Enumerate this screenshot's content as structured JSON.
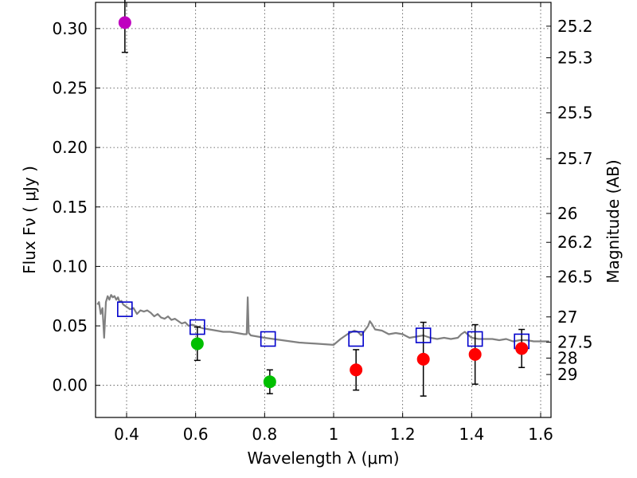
{
  "chart_data": {
    "type": "scatter",
    "title": "",
    "xlabel": "Wavelength  λ (μm)",
    "ylabel": "Flux  Fν  ( μJy )",
    "ylabel_right": "Magnitude (AB)",
    "xlim": [
      0.31,
      1.63
    ],
    "ylim": [
      -0.027,
      0.322
    ],
    "grid": true,
    "x_ticks": [
      {
        "value": 0.4,
        "label": "0.4"
      },
      {
        "value": 0.6,
        "label": "0.6"
      },
      {
        "value": 0.8,
        "label": "0.8"
      },
      {
        "value": 1.0,
        "label": "1"
      },
      {
        "value": 1.2,
        "label": "1.2"
      },
      {
        "value": 1.4,
        "label": "1.4"
      },
      {
        "value": 1.6,
        "label": "1.6"
      }
    ],
    "y_ticks": [
      {
        "value": 0.0,
        "label": "0.00"
      },
      {
        "value": 0.05,
        "label": "0.05"
      },
      {
        "value": 0.1,
        "label": "0.10"
      },
      {
        "value": 0.15,
        "label": "0.15"
      },
      {
        "value": 0.2,
        "label": "0.20"
      },
      {
        "value": 0.25,
        "label": "0.25"
      },
      {
        "value": 0.3,
        "label": "0.30"
      }
    ],
    "mag_ticks": [
      {
        "mag": 25.2,
        "label": "25.2"
      },
      {
        "mag": 25.3,
        "label": "25.3"
      },
      {
        "mag": 25.5,
        "label": "25.5"
      },
      {
        "mag": 25.7,
        "label": "25.7"
      },
      {
        "mag": 26.0,
        "label": "26"
      },
      {
        "mag": 26.2,
        "label": "26.2"
      },
      {
        "mag": 26.5,
        "label": "26.5"
      },
      {
        "mag": 27.0,
        "label": "27"
      },
      {
        "mag": 27.5,
        "label": "27.5"
      },
      {
        "mag": 28.0,
        "label": "28"
      },
      {
        "mag": 29.0,
        "label": "29"
      }
    ],
    "series": [
      {
        "name": "model-sed",
        "kind": "line",
        "color": "#808080",
        "x": [
          0.315,
          0.32,
          0.325,
          0.33,
          0.335,
          0.34,
          0.345,
          0.35,
          0.355,
          0.36,
          0.365,
          0.37,
          0.375,
          0.38,
          0.385,
          0.39,
          0.4,
          0.41,
          0.42,
          0.43,
          0.44,
          0.45,
          0.46,
          0.47,
          0.48,
          0.49,
          0.5,
          0.51,
          0.52,
          0.53,
          0.54,
          0.55,
          0.56,
          0.57,
          0.58,
          0.59,
          0.6,
          0.62,
          0.64,
          0.66,
          0.68,
          0.7,
          0.72,
          0.74,
          0.748,
          0.751,
          0.754,
          0.76,
          0.78,
          0.8,
          0.85,
          0.9,
          0.95,
          1.0,
          1.02,
          1.04,
          1.06,
          1.07,
          1.08,
          1.09,
          1.1,
          1.105,
          1.11,
          1.12,
          1.14,
          1.16,
          1.18,
          1.2,
          1.22,
          1.24,
          1.26,
          1.28,
          1.3,
          1.32,
          1.34,
          1.36,
          1.37,
          1.38,
          1.4,
          1.42,
          1.44,
          1.46,
          1.48,
          1.5,
          1.52,
          1.54,
          1.56,
          1.58,
          1.6,
          1.625
        ],
        "y": [
          0.068,
          0.07,
          0.06,
          0.065,
          0.04,
          0.07,
          0.075,
          0.072,
          0.076,
          0.074,
          0.075,
          0.072,
          0.074,
          0.07,
          0.071,
          0.068,
          0.066,
          0.064,
          0.065,
          0.06,
          0.063,
          0.062,
          0.063,
          0.061,
          0.058,
          0.06,
          0.057,
          0.056,
          0.058,
          0.055,
          0.056,
          0.054,
          0.052,
          0.053,
          0.05,
          0.051,
          0.05,
          0.048,
          0.047,
          0.046,
          0.045,
          0.045,
          0.044,
          0.043,
          0.043,
          0.074,
          0.044,
          0.042,
          0.041,
          0.04,
          0.038,
          0.036,
          0.035,
          0.034,
          0.039,
          0.043,
          0.046,
          0.045,
          0.042,
          0.046,
          0.05,
          0.054,
          0.052,
          0.047,
          0.046,
          0.043,
          0.044,
          0.043,
          0.04,
          0.041,
          0.042,
          0.04,
          0.039,
          0.04,
          0.039,
          0.04,
          0.043,
          0.045,
          0.04,
          0.039,
          0.039,
          0.039,
          0.038,
          0.039,
          0.037,
          0.038,
          0.038,
          0.037,
          0.037,
          0.037
        ]
      },
      {
        "name": "model-photometry",
        "kind": "open-square",
        "color": "#0000cc",
        "x": [
          0.395,
          0.605,
          0.81,
          1.065,
          1.26,
          1.41,
          1.545
        ],
        "y": [
          0.064,
          0.049,
          0.039,
          0.039,
          0.042,
          0.039,
          0.037
        ]
      },
      {
        "name": "observed-flux",
        "kind": "filled-circle",
        "points": [
          {
            "x": 0.395,
            "y": 0.305,
            "err": 0.025,
            "color": "#bf00bf"
          },
          {
            "x": 0.605,
            "y": 0.035,
            "err": 0.014,
            "color": "#00bf00"
          },
          {
            "x": 0.815,
            "y": 0.003,
            "err": 0.01,
            "color": "#00bf00"
          },
          {
            "x": 1.065,
            "y": 0.013,
            "err": 0.017,
            "color": "#ff0000"
          },
          {
            "x": 1.26,
            "y": 0.022,
            "err": 0.031,
            "color": "#ff0000"
          },
          {
            "x": 1.41,
            "y": 0.026,
            "err": 0.025,
            "color": "#ff0000"
          },
          {
            "x": 1.545,
            "y": 0.031,
            "err": 0.016,
            "color": "#ff0000"
          }
        ]
      }
    ]
  }
}
